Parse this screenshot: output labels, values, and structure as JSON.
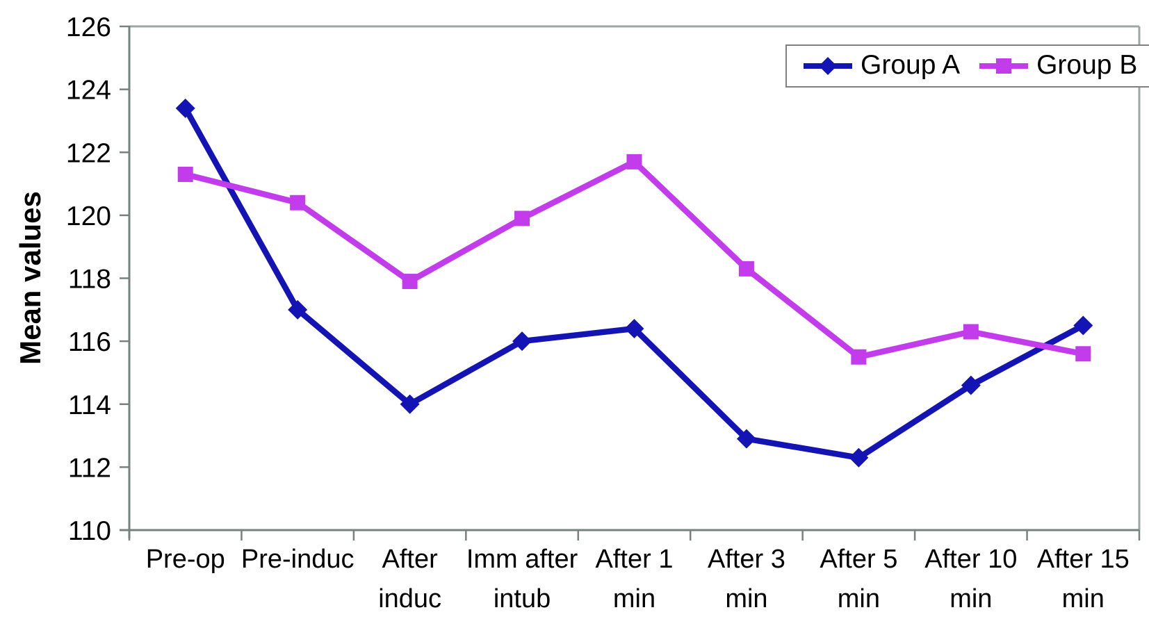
{
  "chart_data": {
    "type": "line",
    "title": "",
    "xlabel": "",
    "ylabel": "Mean values",
    "ylim": [
      110,
      126
    ],
    "ytick_step": 2,
    "yticks": [
      126,
      124,
      122,
      120,
      118,
      116,
      114,
      112,
      110
    ],
    "categories": [
      "Pre-op",
      "Pre-induc",
      "After induc",
      "Imm after intub",
      "After 1 min",
      "After 3 min",
      "After 5 min",
      "After 10 min",
      "After 15 min"
    ],
    "category_label_lines": [
      [
        "Pre-op"
      ],
      [
        "Pre-induc"
      ],
      [
        "After",
        "induc"
      ],
      [
        "Imm after",
        "intub"
      ],
      [
        "After 1",
        "min"
      ],
      [
        "After 3",
        "min"
      ],
      [
        "After 5",
        "min"
      ],
      [
        "After 10",
        "min"
      ],
      [
        "After 15",
        "min"
      ]
    ],
    "series": [
      {
        "name": "Group A",
        "marker": "diamond",
        "color": "#1414B4",
        "values": [
          123.4,
          117.0,
          114.0,
          116.0,
          116.4,
          112.9,
          112.3,
          114.6,
          116.5
        ]
      },
      {
        "name": "Group B",
        "marker": "square",
        "color": "#C33CEC",
        "values": [
          121.3,
          120.4,
          117.9,
          119.9,
          121.7,
          118.3,
          115.5,
          116.3,
          115.6
        ]
      }
    ],
    "legend_position": "top-right",
    "grid": false,
    "background": "#ffffff",
    "axis_color": "#76827E",
    "plot_border_color": "#9CA6A2",
    "text_color": "#000000"
  }
}
